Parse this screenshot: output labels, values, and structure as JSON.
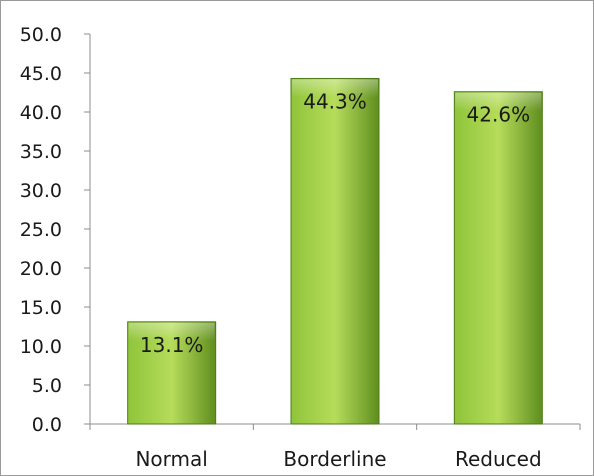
{
  "chart_data": {
    "type": "bar",
    "categories": [
      "Normal",
      "Borderline",
      "Reduced"
    ],
    "values": [
      13.1,
      44.3,
      42.6
    ],
    "data_labels": [
      "13.1%",
      "44.3%",
      "42.6%"
    ],
    "ylim": [
      0,
      50
    ],
    "yticks": [
      "0.0",
      "5.0",
      "10.0",
      "15.0",
      "20.0",
      "25.0",
      "30.0",
      "35.0",
      "40.0",
      "45.0",
      "50.0"
    ],
    "grid": false,
    "legend": "none",
    "colors": {
      "bar_light": "#b6dc5a",
      "bar_mid": "#8fc43a",
      "bar_dark": "#5f8e1f",
      "bar_edge": "#4f7a18",
      "axis": "#8c8c8c"
    }
  }
}
